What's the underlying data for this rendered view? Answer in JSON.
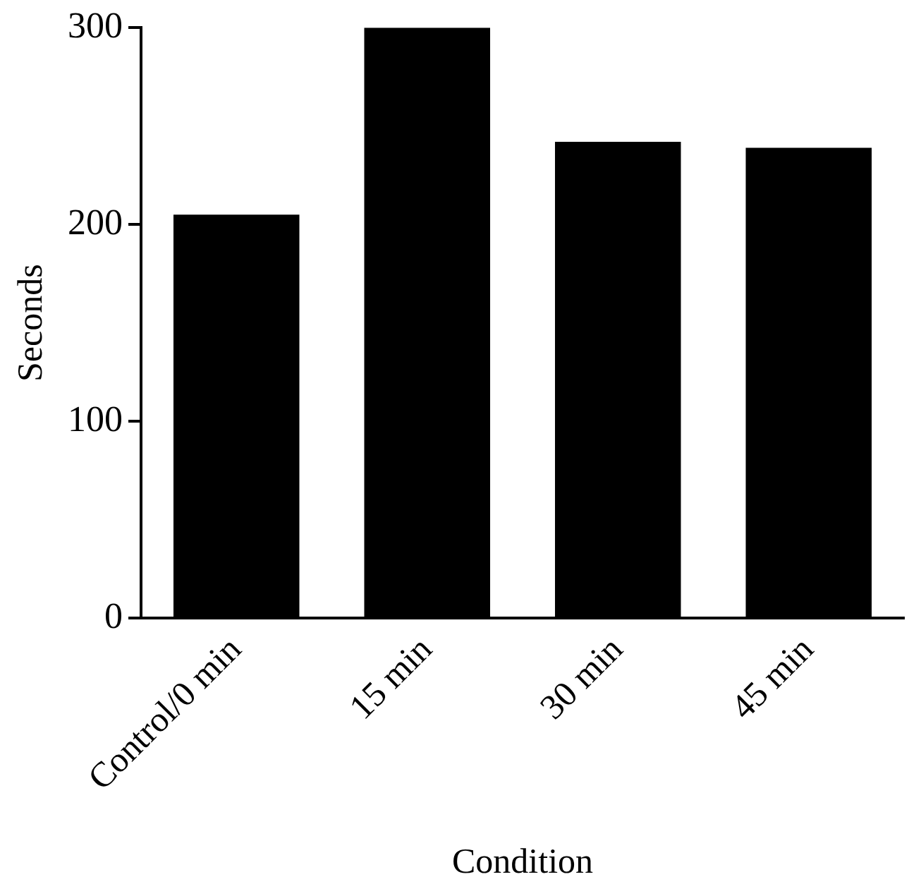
{
  "chart_data": {
    "type": "bar",
    "xlabel": "Condition",
    "ylabel": "Seconds",
    "categories": [
      "Control/0 min",
      "15 min",
      "30 min",
      "45 min"
    ],
    "values": [
      205,
      300,
      242,
      239
    ],
    "color": "#000000",
    "ylim": [
      0,
      300
    ],
    "yticks": [
      0,
      100,
      200,
      300
    ],
    "grid": false,
    "legend": false
  }
}
